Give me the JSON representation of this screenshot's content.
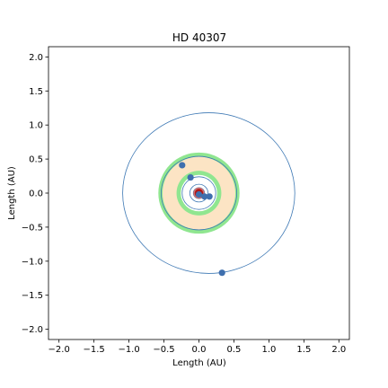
{
  "chart_data": {
    "type": "scatter",
    "title": "HD 40307",
    "xlabel": "Length (AU)",
    "ylabel": "Length (AU)",
    "xlim": [
      -2.15,
      2.15
    ],
    "ylim": [
      -2.15,
      2.15
    ],
    "xticks": [
      -2.0,
      -1.5,
      -1.0,
      -0.5,
      0.0,
      0.5,
      1.0,
      1.5,
      2.0
    ],
    "yticks": [
      -2.0,
      -1.5,
      -1.0,
      -0.5,
      0.0,
      0.5,
      1.0,
      1.5,
      2.0
    ],
    "xtick_labels": [
      "−2.0",
      "−1.5",
      "−1.0",
      "−0.5",
      "0.0",
      "0.5",
      "1.0",
      "1.5",
      "2.0"
    ],
    "ytick_labels": [
      "−2.0",
      "−1.5",
      "−1.0",
      "−0.5",
      "0.0",
      "0.5",
      "1.0",
      "1.5",
      "2.0"
    ],
    "grid": false,
    "legend": false,
    "habitable_zone": {
      "conservative": {
        "inner_au": 0.32,
        "outer_au": 0.52
      },
      "optimistic": {
        "inner_au": 0.26,
        "outer_au": 0.58
      }
    },
    "star": {
      "x": 0.0,
      "y": 0.0,
      "radius_au": 0.07
    },
    "orbits": [
      {
        "cx": 0.0,
        "cy": 0.0,
        "rx": 0.05,
        "ry": 0.05
      },
      {
        "cx": 0.0,
        "cy": 0.0,
        "rx": 0.08,
        "ry": 0.08
      },
      {
        "cx": 0.0,
        "cy": 0.0,
        "rx": 0.13,
        "ry": 0.13
      },
      {
        "cx": 0.0,
        "cy": 0.0,
        "rx": 0.24,
        "ry": 0.24
      },
      {
        "cx": 0.0,
        "cy": 0.0,
        "rx": 0.54,
        "ry": 0.54
      },
      {
        "cx": 0.14,
        "cy": 0.0,
        "rx": 1.23,
        "ry": 1.18
      }
    ],
    "planets": [
      {
        "x": 0.0,
        "y": -0.02
      },
      {
        "x": 0.08,
        "y": -0.05
      },
      {
        "x": 0.15,
        "y": -0.05
      },
      {
        "x": -0.12,
        "y": 0.23
      },
      {
        "x": -0.24,
        "y": 0.41
      },
      {
        "x": 0.33,
        "y": -1.17
      }
    ],
    "colors": {
      "orbit": "#3d78b4",
      "planet": "#3f6fae",
      "star": "#b01818",
      "star_edge": "#d07070",
      "hz_optimistic": "#90e690",
      "hz_conservative": "#fce4c4"
    }
  }
}
